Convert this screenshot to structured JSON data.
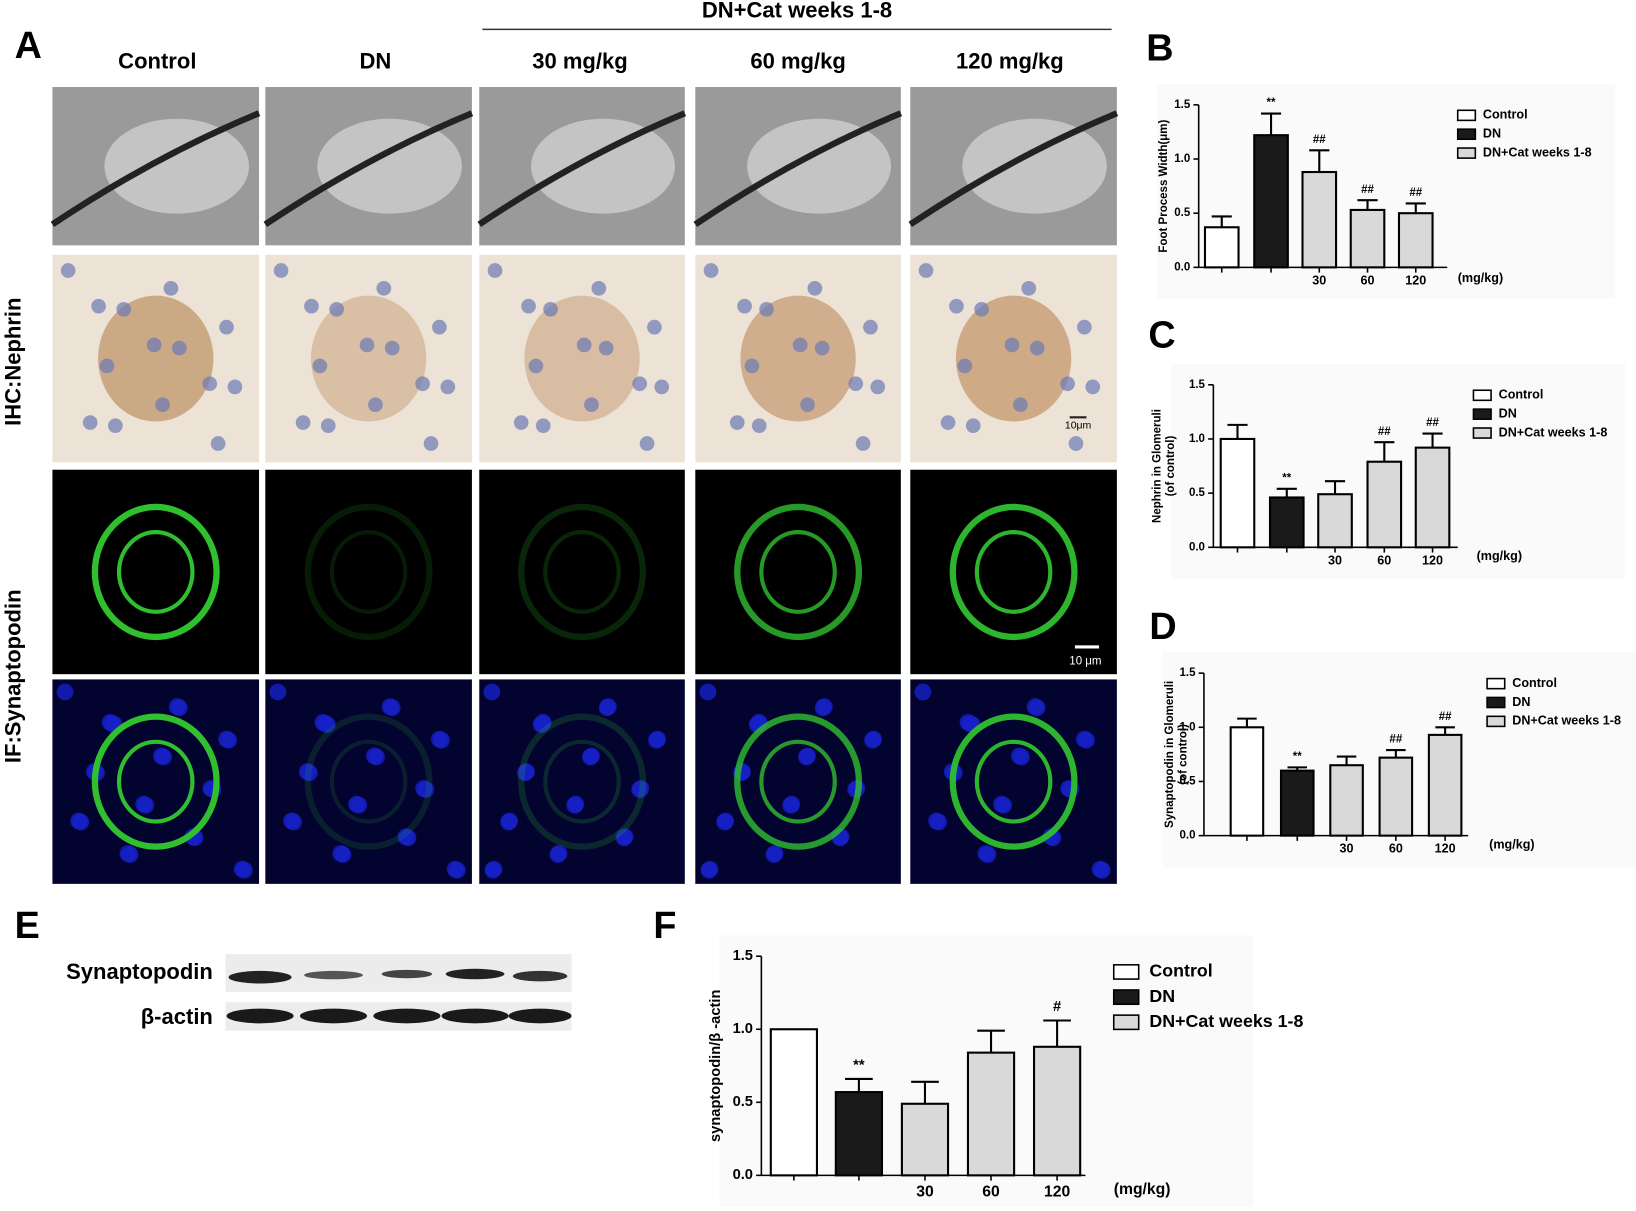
{
  "figure": {
    "panel_a": "A",
    "group_header": "DN+Cat weeks  1-8",
    "columns": [
      "Control",
      "DN",
      "30 mg/kg",
      "60 mg/kg",
      "120 mg/kg"
    ],
    "rows": [
      "IHC:Nephrin",
      "IF:Synaptopodin"
    ],
    "scale_bars": [
      "10μm",
      "10 μm"
    ],
    "panel_e": "E",
    "blot_labels": [
      "Synaptopodin",
      "β-actin"
    ]
  },
  "chart_data": [
    {
      "type": "bar",
      "panel": "B",
      "ylabel": [
        "Foot Process Width(μm)"
      ],
      "categories": [
        null,
        null,
        "30",
        "60",
        "120"
      ],
      "x_unit": "(mg/kg)",
      "values": [
        0.37,
        1.22,
        0.88,
        0.53,
        0.5
      ],
      "errors": [
        0.1,
        0.2,
        0.2,
        0.09,
        0.09
      ],
      "annotations": [
        null,
        "**",
        "##",
        "##",
        "##"
      ],
      "colors": [
        "#ffffff",
        "#1a1a1a",
        "#d9d9d9",
        "#d9d9d9",
        "#d9d9d9"
      ],
      "legend": [
        {
          "name": "Control",
          "color": "#ffffff"
        },
        {
          "name": "DN",
          "color": "#1a1a1a"
        },
        {
          "name": "DN+Cat weeks 1-8",
          "color": "#d9d9d9"
        }
      ],
      "ylim": [
        0,
        1.5
      ],
      "yticks": [
        {
          "value": 0,
          "label": "0.0"
        },
        0.5,
        {
          "value": 1,
          "label": "1.0"
        },
        1.5
      ]
    },
    {
      "type": "bar",
      "panel": "C",
      "ylabel": [
        "Nephrin in Glomeruli",
        "(of control)"
      ],
      "categories": [
        null,
        null,
        "30",
        "60",
        "120"
      ],
      "x_unit": "(mg/kg)",
      "values": [
        1.0,
        0.46,
        0.49,
        0.79,
        0.92
      ],
      "errors": [
        0.13,
        0.08,
        0.12,
        0.18,
        0.13
      ],
      "annotations": [
        null,
        "**",
        null,
        "##",
        "##"
      ],
      "colors": [
        "#ffffff",
        "#1a1a1a",
        "#d9d9d9",
        "#d9d9d9",
        "#d9d9d9"
      ],
      "legend": [
        {
          "name": "Control",
          "color": "#ffffff"
        },
        {
          "name": "DN",
          "color": "#1a1a1a"
        },
        {
          "name": "DN+Cat weeks 1-8",
          "color": "#d9d9d9"
        }
      ],
      "ylim": [
        0,
        1.5
      ],
      "yticks": [
        {
          "value": 0,
          "label": "0.0"
        },
        0.5,
        {
          "value": 1,
          "label": "1.0"
        },
        1.5
      ]
    },
    {
      "type": "bar",
      "panel": "D",
      "ylabel": [
        "Synaptopodin in Glomeruli",
        "(of control)"
      ],
      "categories": [
        null,
        null,
        "30",
        "60",
        "120"
      ],
      "x_unit": "(mg/kg)",
      "values": [
        1.0,
        0.6,
        0.65,
        0.72,
        0.93
      ],
      "errors": [
        0.08,
        0.03,
        0.08,
        0.07,
        0.07
      ],
      "annotations": [
        null,
        "**",
        null,
        "##",
        "##"
      ],
      "colors": [
        "#ffffff",
        "#1a1a1a",
        "#d9d9d9",
        "#d9d9d9",
        "#d9d9d9"
      ],
      "legend": [
        {
          "name": "Control",
          "color": "#ffffff"
        },
        {
          "name": "DN",
          "color": "#1a1a1a"
        },
        {
          "name": "DN+Cat weeks 1-8",
          "color": "#d9d9d9"
        }
      ],
      "ylim": [
        0,
        1.5
      ],
      "yticks": [
        {
          "value": 0,
          "label": "0.0"
        },
        0.5,
        {
          "value": 1,
          "label": "1.0"
        },
        1.5
      ]
    },
    {
      "type": "bar",
      "panel": "F",
      "ylabel": [
        "synaptopodin/β -actin"
      ],
      "categories": [
        null,
        null,
        "30",
        "60",
        "120"
      ],
      "x_unit": "(mg/kg)",
      "values": [
        1.0,
        0.57,
        0.49,
        0.84,
        0.88
      ],
      "errors": [
        0,
        0.09,
        0.15,
        0.15,
        0.18
      ],
      "annotations": [
        null,
        "**",
        null,
        null,
        "#"
      ],
      "colors": [
        "#ffffff",
        "#1a1a1a",
        "#d9d9d9",
        "#d9d9d9",
        "#d9d9d9"
      ],
      "legend": [
        {
          "name": "Control",
          "color": "#ffffff"
        },
        {
          "name": "DN",
          "color": "#1a1a1a"
        },
        {
          "name": "DN+Cat weeks 1-8",
          "color": "#d9d9d9"
        }
      ],
      "ylim": [
        0,
        1.5
      ],
      "yticks": [
        {
          "value": 0,
          "label": "0.0"
        },
        0.5,
        {
          "value": 1,
          "label": "1.0"
        },
        1.5
      ]
    }
  ]
}
